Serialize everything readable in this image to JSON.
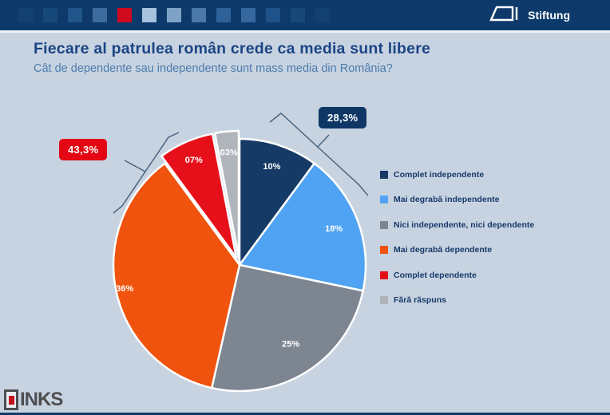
{
  "header": {
    "logo_text": "Stiftung",
    "squares": [
      "#12406f",
      "#17487a",
      "#215589",
      "#3c6c9e",
      "#cf0a1e",
      "#a6c3de",
      "#7fa3c6",
      "#4a78a9",
      "#2e6198",
      "#35689f",
      "#20528a",
      "#174878",
      "#124171"
    ]
  },
  "title": "Fiecare al patrulea român crede ca media sunt libere",
  "subtitle": "Cât de dependente sau independente sunt mass media din România?",
  "chart_data": {
    "type": "pie",
    "title": "Fiecare al patrulea român crede ca media sunt libere",
    "subtitle": "Cât de dependente sau independente sunt mass media din România?",
    "categories": [
      "Complet independente",
      "Mai degrabă independente",
      "Nici independente, nici dependente",
      "Mai degrabă dependente",
      "Complet dependente",
      "Fără răspuns"
    ],
    "values": [
      10,
      18,
      25,
      36,
      7,
      3
    ],
    "slice_labels": [
      "10%",
      "18%",
      "25%",
      "36%",
      "07%",
      "03%"
    ],
    "colors": [
      "#153a66",
      "#4fa3f2",
      "#7d8591",
      "#f0530d",
      "#e6101b",
      "#b0b4bb"
    ],
    "start_angle_deg": 0,
    "direction": "clockwise",
    "exploded": [
      false,
      false,
      false,
      false,
      true,
      true
    ],
    "legend_position": "right",
    "callouts": [
      {
        "text": "28,3%",
        "color": "#0f3766",
        "group": [
          0,
          1
        ],
        "side": "right"
      },
      {
        "text": "43,3%",
        "color": "#e30613",
        "group": [
          3,
          4
        ],
        "side": "left"
      }
    ]
  },
  "footer": {
    "logo_text": "INKS"
  }
}
